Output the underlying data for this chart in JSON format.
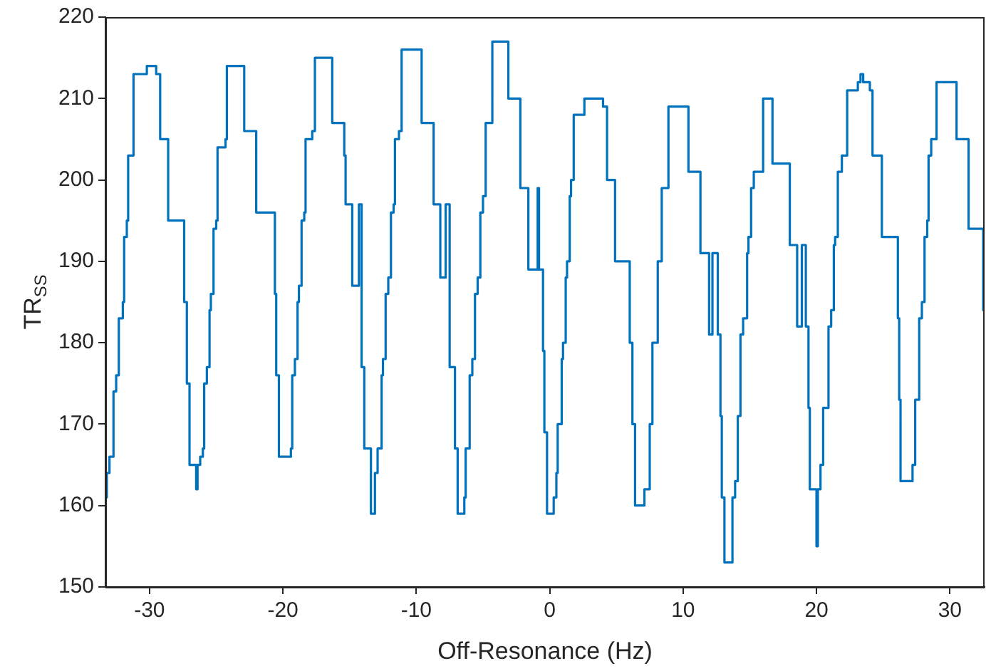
{
  "chart_data": {
    "type": "step",
    "xlabel": "Off-Resonance (Hz)",
    "ylabel": "TR$_{SS}$",
    "x": [
      -33.3,
      -33.2,
      -33.0,
      -32.7,
      -32.5,
      -32.3,
      -32.0,
      -31.9,
      -31.7,
      -31.6,
      -31.2,
      -30.2,
      -29.5,
      -29.2,
      -28.6,
      -27.4,
      -27.2,
      -27.0,
      -26.5,
      -26.4,
      -26.2,
      -26.0,
      -25.9,
      -25.7,
      -25.5,
      -25.4,
      -25.2,
      -25.0,
      -24.9,
      -24.3,
      -24.2,
      -22.9,
      -22.0,
      -20.6,
      -20.5,
      -20.3,
      -19.4,
      -19.3,
      -19.1,
      -18.9,
      -18.8,
      -18.6,
      -18.4,
      -18.3,
      -17.8,
      -17.6,
      -16.3,
      -15.4,
      -15.3,
      -14.8,
      -14.3,
      -14.1,
      -13.9,
      -13.4,
      -13.1,
      -12.9,
      -12.6,
      -12.5,
      -12.3,
      -12.1,
      -11.9,
      -11.7,
      -11.6,
      -11.3,
      -11.1,
      -9.6,
      -8.7,
      -8.2,
      -7.8,
      -7.5,
      -7.1,
      -6.9,
      -6.4,
      -6.3,
      -6.0,
      -5.8,
      -5.6,
      -5.4,
      -5.2,
      -5.0,
      -4.8,
      -4.3,
      -3.1,
      -2.2,
      -1.6,
      -0.9,
      -0.8,
      -0.5,
      -0.4,
      -0.2,
      0.3,
      0.5,
      0.6,
      0.9,
      1.0,
      1.2,
      1.3,
      1.5,
      1.6,
      1.8,
      2.6,
      4.0,
      4.3,
      4.9,
      6.0,
      6.2,
      6.4,
      7.1,
      7.5,
      7.7,
      8.1,
      8.4,
      8.9,
      10.4,
      11.3,
      11.95,
      12.2,
      12.6,
      12.8,
      12.9,
      13.1,
      13.7,
      13.9,
      14.1,
      14.3,
      14.5,
      14.8,
      14.9,
      15.1,
      15.3,
      16.0,
      16.7,
      18.0,
      18.55,
      18.9,
      19.2,
      19.4,
      19.5,
      20.0,
      20.1,
      20.3,
      20.5,
      20.9,
      21.1,
      21.3,
      21.4,
      21.6,
      21.9,
      22.3,
      23.1,
      23.3,
      23.5,
      24.0,
      24.2,
      24.9,
      26.1,
      26.2,
      26.3,
      27.2,
      27.4,
      27.7,
      27.9,
      28.1,
      28.3,
      28.4,
      28.6,
      29.0,
      30.5,
      31.4,
      32.5,
      32.6
    ],
    "series": [
      {
        "color": "#0072bd",
        "values": [
          161,
          164,
          166,
          174,
          176,
          183,
          185,
          193,
          195,
          203,
          213,
          214,
          213,
          205,
          195,
          185,
          175,
          165,
          162,
          165,
          166,
          167,
          175,
          177,
          184,
          186,
          194,
          195,
          204,
          205,
          214,
          206,
          196,
          186,
          176,
          166,
          167,
          176,
          178,
          185,
          187,
          195,
          196,
          205,
          206,
          215,
          207,
          203,
          197,
          187,
          197,
          177,
          167,
          159,
          164,
          167,
          176,
          178,
          186,
          188,
          196,
          197,
          205,
          206,
          216,
          207,
          197,
          188,
          197,
          177,
          167,
          159,
          161,
          167,
          176,
          178,
          186,
          188,
          196,
          198,
          207,
          217,
          210,
          199,
          189,
          199,
          189,
          179,
          169,
          159,
          161,
          164,
          170,
          178,
          180,
          188,
          190,
          198,
          200,
          208,
          210,
          209,
          200,
          190,
          180,
          170,
          160,
          162,
          170,
          180,
          190,
          199,
          209,
          201,
          191,
          181,
          191,
          181,
          171,
          161,
          153,
          161,
          163,
          171,
          181,
          183,
          191,
          193,
          199,
          201,
          210,
          202,
          192,
          182,
          192,
          182,
          172,
          162,
          155,
          162,
          165,
          172,
          182,
          184,
          192,
          193,
          201,
          203,
          211,
          212,
          213,
          212,
          211,
          203,
          193,
          183,
          173,
          163,
          165,
          173,
          183,
          185,
          193,
          195,
          203,
          205,
          212,
          205,
          194,
          184,
          184
        ]
      }
    ],
    "xlim": [
      -33.3,
      32.6
    ],
    "ylim": [
      150,
      220
    ],
    "xticks": [
      -30,
      -20,
      -10,
      0,
      10,
      20,
      30
    ],
    "yticks": [
      150,
      160,
      170,
      180,
      190,
      200,
      210,
      220
    ],
    "grid": false,
    "legend": false
  }
}
